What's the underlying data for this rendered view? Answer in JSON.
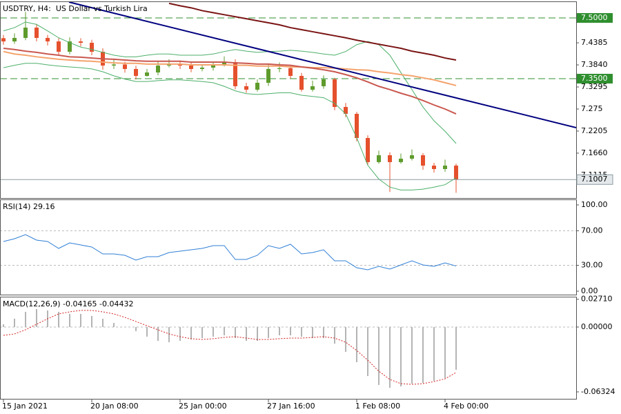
{
  "chart_data": [
    {
      "type": "candlestick",
      "title": "USDTRY, H4:  US Dollar vs Turkish Lira",
      "categories": [
        "15 Jan 2021",
        null,
        null,
        null,
        null,
        null,
        null,
        null,
        "20 Jan 08:00",
        null,
        null,
        null,
        null,
        null,
        null,
        null,
        "25 Jan 00:00",
        null,
        null,
        null,
        null,
        null,
        null,
        null,
        "27 Jan 16:00",
        null,
        null,
        null,
        null,
        null,
        null,
        null,
        "1 Feb 08:00",
        null,
        null,
        null,
        null,
        null,
        null,
        null,
        "4 Feb 00:00",
        null
      ],
      "open": [
        7.45,
        7.442,
        7.4506,
        7.4761,
        7.4506,
        7.442,
        7.4165,
        7.442,
        7.4386,
        7.4165,
        7.3824,
        7.385,
        7.3739,
        7.3568,
        7.3653,
        7.3824,
        7.3875,
        7.3824,
        7.3739,
        7.3773,
        7.3824,
        7.3909,
        7.3313,
        7.3227,
        7.3398,
        7.3739,
        7.376,
        7.3568,
        7.3227,
        7.3313,
        7.3483,
        7.2801,
        7.2631,
        7.2034,
        7.1438,
        7.1608,
        7.1438,
        7.1523,
        7.1608,
        7.1352,
        7.1267,
        7.1352
      ],
      "high": [
        7.458,
        7.462,
        7.515,
        7.485,
        7.458,
        7.45,
        7.452,
        7.45,
        7.446,
        7.425,
        7.398,
        7.392,
        7.382,
        7.374,
        7.392,
        7.398,
        7.395,
        7.392,
        7.386,
        7.39,
        7.405,
        7.398,
        7.34,
        7.348,
        7.386,
        7.39,
        7.384,
        7.364,
        7.345,
        7.358,
        7.352,
        7.29,
        7.268,
        7.21,
        7.172,
        7.168,
        7.165,
        7.175,
        7.166,
        7.142,
        7.15,
        7.14
      ],
      "low": [
        7.434,
        7.436,
        7.445,
        7.442,
        7.432,
        7.408,
        7.41,
        7.43,
        7.408,
        7.372,
        7.374,
        7.365,
        7.348,
        7.355,
        7.358,
        7.378,
        7.374,
        7.366,
        7.368,
        7.37,
        7.38,
        7.324,
        7.315,
        7.318,
        7.332,
        7.366,
        7.35,
        7.318,
        7.318,
        7.325,
        7.272,
        7.255,
        7.195,
        7.136,
        7.14,
        7.07,
        7.14,
        7.148,
        7.125,
        7.118,
        7.12,
        7.068
      ],
      "close": [
        7.442,
        7.4506,
        7.4761,
        7.4506,
        7.442,
        7.4165,
        7.442,
        7.4386,
        7.4165,
        7.3824,
        7.385,
        7.3739,
        7.3568,
        7.3653,
        7.3824,
        7.3875,
        7.3824,
        7.3739,
        7.3773,
        7.3824,
        7.3909,
        7.3313,
        7.3227,
        7.3398,
        7.3739,
        7.376,
        7.3568,
        7.3227,
        7.3313,
        7.3483,
        7.2801,
        7.2631,
        7.2034,
        7.1438,
        7.1608,
        7.1438,
        7.1523,
        7.1608,
        7.1352,
        7.1267,
        7.1352,
        7.1007
      ],
      "up_color": "#5e9b2c",
      "down_color": "#e5502d",
      "series": [
        {
          "color": "#4caf6a",
          "values": [
            7.468,
            7.476,
            7.49,
            7.484,
            7.468,
            7.451,
            7.439,
            7.428,
            7.422,
            7.415,
            7.408,
            7.404,
            7.404,
            7.408,
            7.411,
            7.411,
            7.408,
            7.408,
            7.408,
            7.411,
            7.417,
            7.422,
            7.418,
            7.415,
            7.417,
            7.418,
            7.42,
            7.418,
            7.415,
            7.411,
            7.408,
            7.417,
            7.434,
            7.442,
            7.434,
            7.408,
            7.365,
            7.323,
            7.28,
            7.246,
            7.22,
            7.19
          ]
        },
        {
          "color": "#4caf6a",
          "values": [
            7.377,
            7.383,
            7.388,
            7.388,
            7.384,
            7.381,
            7.379,
            7.377,
            7.374,
            7.367,
            7.357,
            7.349,
            7.343,
            7.343,
            7.345,
            7.347,
            7.347,
            7.345,
            7.343,
            7.34,
            7.331,
            7.32,
            7.313,
            7.311,
            7.313,
            7.315,
            7.315,
            7.309,
            7.306,
            7.303,
            7.289,
            7.263,
            7.204,
            7.136,
            7.102,
            7.082,
            7.075,
            7.075,
            7.077,
            7.082,
            7.088,
            7.105
          ]
        },
        {
          "color": "#f4a36c",
          "values": [
            7.417,
            7.411,
            7.408,
            7.404,
            7.401,
            7.398,
            7.396,
            7.394,
            7.393,
            7.391,
            7.389,
            7.388,
            7.388,
            7.386,
            7.386,
            7.386,
            7.386,
            7.384,
            7.384,
            7.384,
            7.384,
            7.383,
            7.383,
            7.381,
            7.381,
            7.381,
            7.379,
            7.379,
            7.377,
            7.377,
            7.376,
            7.374,
            7.372,
            7.371,
            7.367,
            7.364,
            7.36,
            7.357,
            7.352,
            7.347,
            7.34,
            7.333
          ]
        },
        {
          "color": "#c9574e",
          "values": [
            7.425,
            7.422,
            7.418,
            7.415,
            7.411,
            7.408,
            7.404,
            7.403,
            7.401,
            7.399,
            7.398,
            7.396,
            7.394,
            7.393,
            7.393,
            7.393,
            7.393,
            7.391,
            7.391,
            7.391,
            7.391,
            7.389,
            7.388,
            7.386,
            7.386,
            7.384,
            7.383,
            7.379,
            7.376,
            7.372,
            7.367,
            7.36,
            7.352,
            7.342,
            7.331,
            7.323,
            7.314,
            7.306,
            7.296,
            7.285,
            7.275,
            7.263
          ]
        },
        {
          "color": "#7a1414",
          "values": [
            null,
            null,
            null,
            null,
            null,
            null,
            null,
            null,
            null,
            null,
            null,
            null,
            null,
            null,
            null,
            7.536,
            7.53,
            7.525,
            7.518,
            7.513,
            7.508,
            7.503,
            7.498,
            7.493,
            7.488,
            7.483,
            7.476,
            7.471,
            7.466,
            7.461,
            7.456,
            7.451,
            7.445,
            7.44,
            7.435,
            7.43,
            7.425,
            7.418,
            7.413,
            7.408,
            7.401,
            7.396
          ]
        }
      ],
      "trendline": {
        "color": "#00007f",
        "x": [
          5.94,
          51.875
        ],
        "values": [
          7.5392,
          7.229
        ]
      },
      "levels": [
        {
          "value": 7.5,
          "label": "7.5000"
        },
        {
          "value": 7.35,
          "label": "7.3500"
        }
      ],
      "level_color": "#2f8f2f",
      "last_price": {
        "value": 7.1007,
        "label": "7.1007"
      },
      "ylim": [
        7.0551,
        7.5392
      ],
      "yticks": [
        {
          "value": 7.4385,
          "label": "7.4385"
        },
        {
          "value": 7.384,
          "label": "7.3840"
        },
        {
          "value": 7.3295,
          "label": "7.3295"
        },
        7.275,
        7.2205,
        {
          "value": 7.166,
          "label": "7.1660"
        },
        7.1115
      ]
    },
    {
      "type": "line",
      "title": "RSI(14) 29.16",
      "series": [
        {
          "color": "#2f7fd6",
          "values": [
            57.6,
            60.8,
            65.6,
            59.2,
            57.6,
            49.6,
            56,
            53.6,
            51.2,
            43.2,
            43.2,
            41.6,
            36,
            40,
            40,
            44.8,
            46.4,
            48,
            49.6,
            52.8,
            52.8,
            36.8,
            36.8,
            41.6,
            52.8,
            49.6,
            54.4,
            43.2,
            44.8,
            48,
            35.2,
            35.2,
            27.2,
            24.8,
            28.8,
            25.6,
            30.4,
            35.2,
            30.4,
            28.8,
            32.8,
            29.16
          ]
        }
      ],
      "levels": [
        70,
        30
      ],
      "ylim": [
        -4,
        105.6
      ],
      "yticks": [
        {
          "value": 100,
          "label": "100.00"
        },
        {
          "value": 70,
          "label": "70.00"
        },
        {
          "value": 30,
          "label": "30.00"
        },
        {
          "value": 0,
          "label": "0.00"
        }
      ]
    },
    {
      "type": "macd",
      "title": "MACD(12,26,9) -0.04165 -0.04432",
      "series": [
        {
          "color": "#b4b4b4",
          "style": "histogram",
          "values": [
            0.0027,
            0.0081,
            0.0148,
            0.0175,
            0.0162,
            0.0148,
            0.0128,
            0.0128,
            0.0108,
            0.0081,
            0.004,
            0,
            -0.004,
            -0.0094,
            -0.0135,
            -0.0148,
            -0.0135,
            -0.0121,
            -0.0108,
            -0.0094,
            -0.0081,
            -0.0108,
            -0.0135,
            -0.0135,
            -0.0108,
            -0.0081,
            -0.0081,
            -0.0094,
            -0.0108,
            -0.0108,
            -0.0162,
            -0.0242,
            -0.0343,
            -0.0478,
            -0.0565,
            -0.0592,
            -0.0579,
            -0.0552,
            -0.0545,
            -0.0525,
            -0.0498,
            -0.04165
          ]
        },
        {
          "color": "#d42020",
          "style": "dotted",
          "values": [
            -0.0081,
            -0.0067,
            -0.0027,
            0.0027,
            0.0081,
            0.0128,
            0.0148,
            0.0162,
            0.0162,
            0.0148,
            0.0128,
            0.0094,
            0.0054,
            0.0013,
            -0.0027,
            -0.0067,
            -0.0094,
            -0.0114,
            -0.0121,
            -0.0114,
            -0.0101,
            -0.0094,
            -0.0108,
            -0.0121,
            -0.0121,
            -0.0114,
            -0.0108,
            -0.0108,
            -0.0101,
            -0.0094,
            -0.0108,
            -0.0148,
            -0.0229,
            -0.0323,
            -0.0431,
            -0.0511,
            -0.0552,
            -0.0559,
            -0.0552,
            -0.0532,
            -0.0505,
            -0.04432
          ]
        }
      ],
      "levels": [
        0
      ],
      "ylim": [
        -0.07,
        0.0289
      ],
      "yticks": [
        {
          "value": 0.0271,
          "label": "0.02710"
        },
        {
          "value": 0,
          "label": "0.00000"
        },
        {
          "value": -0.06324,
          "label": "-0.06324"
        }
      ]
    }
  ]
}
